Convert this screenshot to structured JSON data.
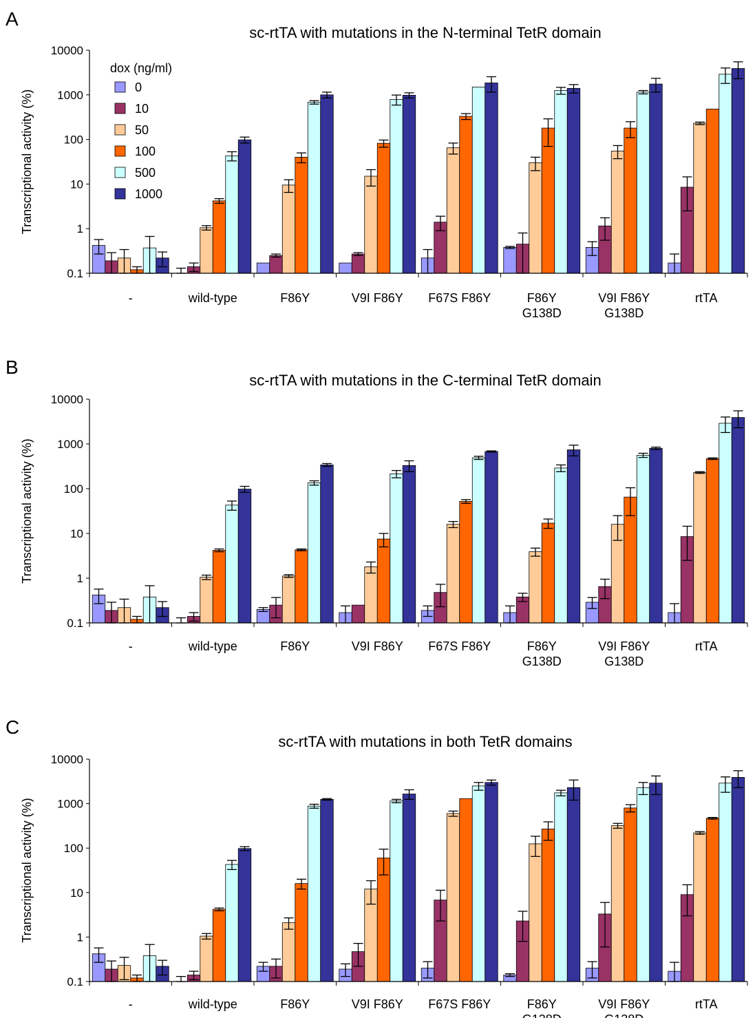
{
  "categories": [
    [
      "-"
    ],
    [
      "wild-type"
    ],
    [
      "F86Y"
    ],
    [
      "V9I F86Y"
    ],
    [
      "F67S F86Y"
    ],
    [
      "F86Y",
      "G138D"
    ],
    [
      "V9I F86Y",
      "G138D"
    ],
    [
      "rtTA"
    ]
  ],
  "legend": {
    "title": "dox (ng/ml)",
    "items": [
      "0",
      "10",
      "50",
      "100",
      "500",
      "1000"
    ],
    "colors": [
      "#9999ff",
      "#993366",
      "#ffcc99",
      "#ff6600",
      "#ccffff",
      "#333399"
    ]
  },
  "chart_data": [
    {
      "panel_label": "A",
      "type": "bar",
      "title": "sc-rtTA with mutations in the N-terminal TetR domain",
      "ylabel": "Transcriptional activity (%)",
      "yscale": "log",
      "ylim": [
        0.1,
        10000
      ],
      "yticks": [
        "0.1",
        "1",
        "10",
        "100",
        "1000",
        "10000"
      ],
      "series": [
        {
          "name": "0",
          "values": [
            0.42,
            0.1,
            0.17,
            0.17,
            0.22,
            0.38,
            0.38,
            0.17
          ],
          "errors": [
            0.15,
            0.03,
            0,
            0,
            0.12,
            0.02,
            0.13,
            0.1
          ]
        },
        {
          "name": "10",
          "values": [
            0.19,
            0.14,
            0.25,
            0.27,
            1.4,
            0.45,
            1.15,
            8.5
          ],
          "errors": [
            0.1,
            0.03,
            0.02,
            0.02,
            0.5,
            0.35,
            0.6,
            6
          ]
        },
        {
          "name": "50",
          "values": [
            0.22,
            1.05,
            9.5,
            15,
            65,
            30,
            55,
            230
          ],
          "errors": [
            0.12,
            0.12,
            3,
            6,
            18,
            10,
            18,
            15
          ]
        },
        {
          "name": "100",
          "values": [
            0.12,
            4.2,
            40,
            82,
            330,
            180,
            180,
            480
          ],
          "errors": [
            0.02,
            0.5,
            10,
            15,
            50,
            110,
            70,
            0
          ]
        },
        {
          "name": "500",
          "values": [
            0.37,
            43,
            680,
            790,
            1500,
            1250,
            1150,
            2900
          ],
          "errors": [
            0.3,
            10,
            60,
            200,
            0,
            220,
            100,
            1100
          ]
        },
        {
          "name": "1000",
          "values": [
            0.22,
            98,
            1000,
            980,
            1850,
            1400,
            1750,
            3900
          ],
          "errors": [
            0.08,
            15,
            150,
            130,
            700,
            300,
            600,
            1600
          ]
        }
      ]
    },
    {
      "panel_label": "B",
      "type": "bar",
      "title": "sc-rtTA with mutations in the C-terminal TetR domain",
      "ylabel": "Transcriptional activity (%)",
      "yscale": "log",
      "ylim": [
        0.1,
        10000
      ],
      "yticks": [
        "0.1",
        "1",
        "10",
        "100",
        "1000",
        "10000"
      ],
      "series": [
        {
          "name": "0",
          "values": [
            0.42,
            0.1,
            0.2,
            0.17,
            0.19,
            0.17,
            0.29,
            0.17
          ],
          "errors": [
            0.15,
            0.03,
            0.02,
            0.07,
            0.05,
            0.07,
            0.08,
            0.1
          ]
        },
        {
          "name": "10",
          "values": [
            0.19,
            0.14,
            0.25,
            0.25,
            0.48,
            0.38,
            0.65,
            8.5
          ],
          "errors": [
            0.1,
            0.03,
            0.12,
            0,
            0.25,
            0.08,
            0.3,
            6
          ]
        },
        {
          "name": "50",
          "values": [
            0.22,
            1.05,
            1.12,
            1.8,
            16,
            3.9,
            16,
            230
          ],
          "errors": [
            0.12,
            0.12,
            0.08,
            0.5,
            2.5,
            0.8,
            9,
            10
          ]
        },
        {
          "name": "100",
          "values": [
            0.12,
            4.2,
            4.3,
            7.5,
            52,
            17,
            65,
            470
          ],
          "errors": [
            0.02,
            0.3,
            0.2,
            2.5,
            5,
            4,
            40,
            20
          ]
        },
        {
          "name": "500",
          "values": [
            0.38,
            43,
            135,
            215,
            490,
            290,
            560,
            2900
          ],
          "errors": [
            0.3,
            10,
            15,
            40,
            40,
            50,
            60,
            1100
          ]
        },
        {
          "name": "1000",
          "values": [
            0.22,
            98,
            340,
            330,
            680,
            740,
            800,
            3900
          ],
          "errors": [
            0.08,
            15,
            25,
            90,
            20,
            200,
            50,
            1600
          ]
        }
      ]
    },
    {
      "panel_label": "C",
      "type": "bar",
      "title": "sc-rtTA with mutations in both TetR domains",
      "ylabel": "Transcriptional activity (%)",
      "yscale": "log",
      "ylim": [
        0.1,
        10000
      ],
      "yticks": [
        "0.1",
        "1",
        "10",
        "100",
        "1000",
        "10000"
      ],
      "series": [
        {
          "name": "0",
          "values": [
            0.42,
            0.1,
            0.22,
            0.19,
            0.2,
            0.14,
            0.2,
            0.17
          ],
          "errors": [
            0.15,
            0.03,
            0.05,
            0.06,
            0.08,
            0.01,
            0.08,
            0.1
          ]
        },
        {
          "name": "10",
          "values": [
            0.19,
            0.14,
            0.22,
            0.47,
            6.8,
            2.3,
            3.3,
            9
          ],
          "errors": [
            0.1,
            0.03,
            0.1,
            0.25,
            4.5,
            1.5,
            2.7,
            6
          ]
        },
        {
          "name": "50",
          "values": [
            0.23,
            1.05,
            2.1,
            12,
            600,
            125,
            320,
            220
          ],
          "errors": [
            0.12,
            0.15,
            0.6,
            6.5,
            80,
            60,
            40,
            15
          ]
        },
        {
          "name": "100",
          "values": [
            0.12,
            4.2,
            16,
            60,
            1300,
            270,
            800,
            470
          ],
          "errors": [
            0.02,
            0.3,
            4,
            35,
            0,
            120,
            150,
            20
          ]
        },
        {
          "name": "500",
          "values": [
            0.38,
            43,
            880,
            1150,
            2500,
            1750,
            2300,
            2900
          ],
          "errors": [
            0.3,
            10,
            90,
            100,
            500,
            250,
            700,
            1100
          ]
        },
        {
          "name": "1000",
          "values": [
            0.22,
            98,
            1250,
            1650,
            3000,
            2300,
            2900,
            3900
          ],
          "errors": [
            0.08,
            10,
            50,
            400,
            400,
            1100,
            1300,
            1600
          ]
        }
      ]
    }
  ]
}
